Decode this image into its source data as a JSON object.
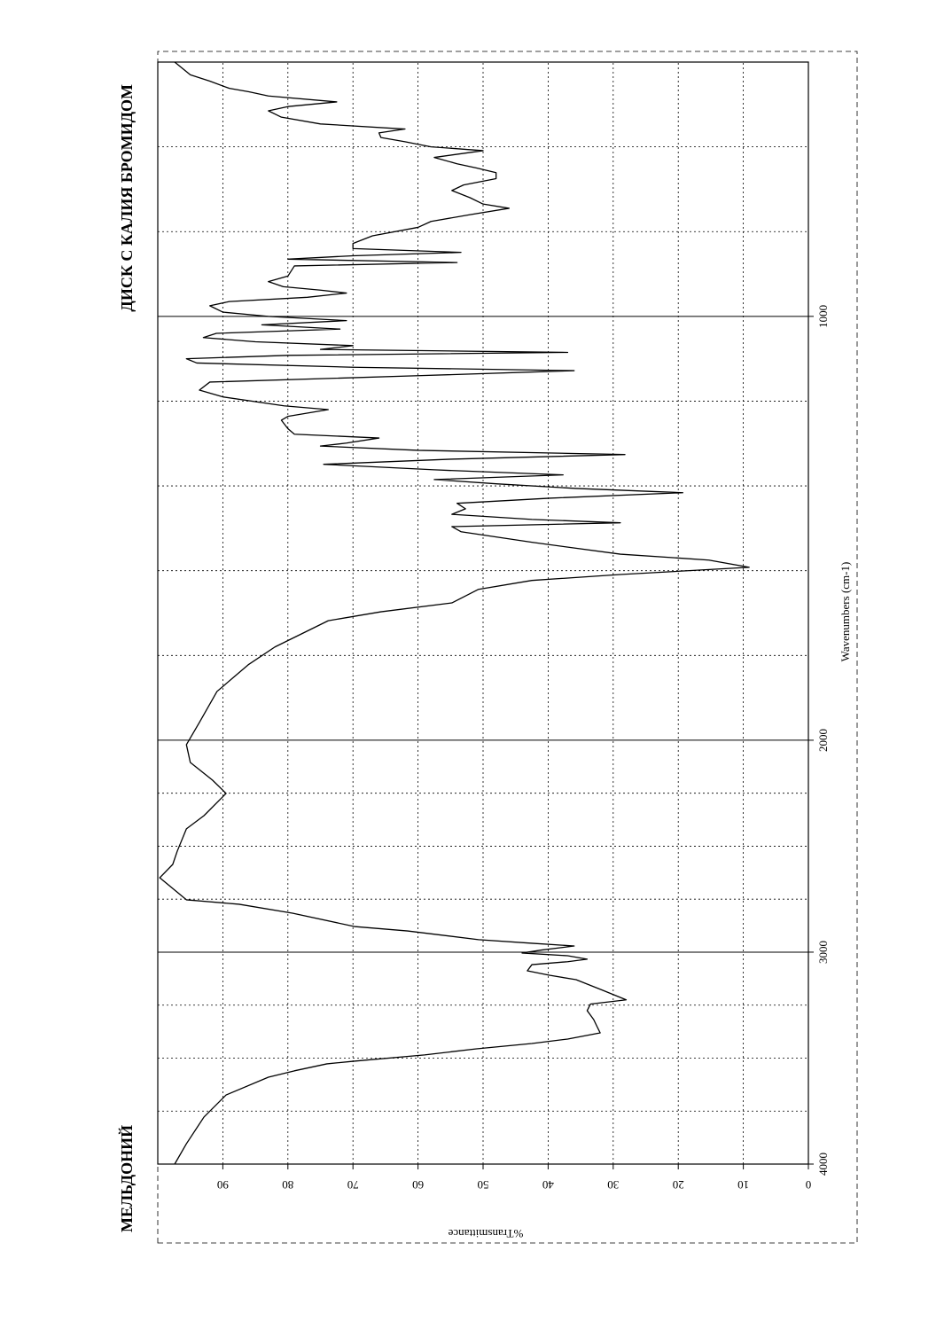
{
  "chart_data": {
    "type": "line",
    "title": "МЕЛЬДОНИЙ",
    "subtitle": "ДИСК С КАЛИЯ БРОМИДОМ",
    "x_label": "Wavenumbers (cm-1)",
    "y_label": "%Transmittance",
    "color": "#000000",
    "xlim": [
      4000,
      400
    ],
    "x_scale_break": {
      "value": 2000,
      "factor": 2
    },
    "xticks": [
      4000,
      3000,
      2000,
      1000
    ],
    "x_minor_grid": [
      3750,
      3500,
      3250,
      2750,
      2500,
      2250,
      1800,
      1600,
      1400,
      1200,
      800,
      600
    ],
    "ylim": [
      0,
      100
    ],
    "yticks": [
      0,
      10,
      20,
      30,
      40,
      50,
      60,
      70,
      80,
      90
    ],
    "grid": true,
    "x": [
      4000,
      3904,
      3778,
      3674,
      3590,
      3560,
      3527,
      3515,
      3485,
      3456,
      3431,
      3410,
      3381,
      3350,
      3318,
      3276,
      3245,
      3225,
      3180,
      3130,
      3109,
      3088,
      3059,
      3045,
      3033,
      3017,
      3004,
      2990,
      2971,
      2958,
      2941,
      2900,
      2879,
      2816,
      2774,
      2753,
      2649,
      2586,
      2523,
      2418,
      2356,
      2251,
      2188,
      2105,
      2021,
      1958,
      1885,
      1822,
      1780,
      1718,
      1697,
      1676,
      1644,
      1623,
      1609,
      1592,
      1575,
      1561,
      1533,
      1508,
      1496,
      1487,
      1479,
      1467,
      1454,
      1441,
      1429,
      1416,
      1406,
      1395,
      1385,
      1374,
      1362,
      1349,
      1337,
      1326,
      1316,
      1306,
      1299,
      1287,
      1278,
      1265,
      1245,
      1236,
      1220,
      1211,
      1190,
      1174,
      1155,
      1140,
      1128,
      1120,
      1110,
      1100,
      1092,
      1085,
      1078,
      1069,
      1060,
      1050,
      1040,
      1030,
      1020,
      1010,
      1000,
      990,
      975,
      965,
      955,
      945,
      938,
      930,
      918,
      905,
      881,
      873,
      865,
      857,
      849,
      840,
      828,
      810,
      790,
      776,
      760,
      745,
      735,
      720,
      703,
      690,
      675,
      661,
      650,
      640,
      625,
      609,
      600,
      588,
      578,
      567,
      558,
      546,
      530,
      515,
      505,
      494,
      480,
      470,
      462,
      445,
      430,
      400
    ],
    "values": [
      97.4,
      95.6,
      92.9,
      89.5,
      83,
      79,
      74,
      70,
      59,
      51,
      42.5,
      37,
      32,
      32.5,
      33,
      34,
      33.5,
      28,
      31.6,
      35.7,
      39.8,
      43.2,
      42.5,
      37,
      34,
      37,
      44,
      41,
      36,
      42.5,
      50.7,
      61.6,
      69.8,
      79.3,
      87.5,
      95.6,
      99.7,
      97.7,
      97,
      95.6,
      92.9,
      89.5,
      91.6,
      95,
      95.6,
      93.6,
      90.9,
      86.1,
      82,
      73.8,
      65.7,
      54.8,
      50.7,
      42.5,
      28.9,
      9.1,
      15.3,
      28.9,
      42.5,
      53.4,
      54.8,
      28.9,
      42.5,
      54.8,
      52.7,
      54,
      39.8,
      19.3,
      35.7,
      48,
      57.5,
      37.7,
      57.5,
      74.5,
      55,
      28.2,
      60,
      75,
      71,
      66,
      79,
      80,
      81,
      80,
      73.8,
      80.6,
      90,
      93.6,
      92,
      60,
      36,
      70,
      94,
      95.6,
      80,
      37,
      75,
      70,
      85,
      93,
      91,
      72,
      84,
      71,
      83,
      90,
      92,
      89,
      77,
      71,
      75,
      80.7,
      83,
      80,
      79,
      54,
      80,
      70,
      53.4,
      70,
      70,
      67,
      60,
      58,
      52,
      46,
      50,
      52,
      54.8,
      53,
      48,
      48,
      51,
      54,
      57.5,
      50,
      58,
      62,
      65.7,
      66,
      62,
      75,
      81,
      83,
      80,
      72.5,
      83,
      86,
      89,
      92,
      95,
      97.4
    ]
  }
}
